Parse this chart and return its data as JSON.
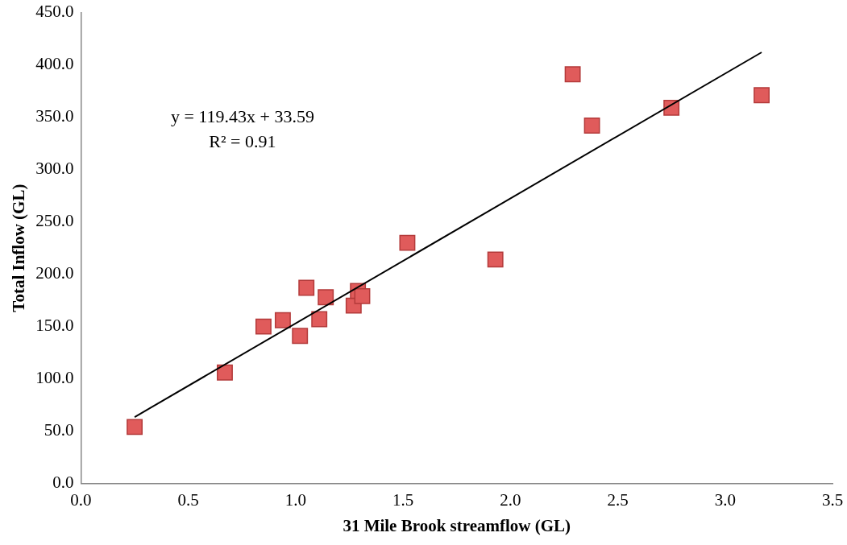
{
  "chart_data": {
    "type": "scatter",
    "xlabel": "31 Mile Brook streamflow (GL)",
    "ylabel": "Total Inflow (GL)",
    "series": [
      {
        "color": "#e05b5b",
        "marker": "square",
        "x": [
          0.25,
          0.67,
          0.85,
          0.94,
          1.02,
          1.05,
          1.11,
          1.14,
          1.27,
          1.29,
          1.31,
          1.52,
          1.93,
          2.29,
          2.38,
          2.75,
          3.17
        ],
        "values": [
          54,
          106,
          150,
          156,
          141,
          187,
          157,
          178,
          170,
          184,
          179,
          230,
          214,
          391,
          342,
          359,
          371
        ]
      },
      {
        "type": "line",
        "color": "#000000",
        "marker": "none",
        "x": [
          0.25,
          3.17
        ],
        "values": [
          63.5,
          412
        ]
      }
    ],
    "annotations": [
      "y = 119.43x + 33.59",
      "R² = 0.91"
    ],
    "xlim": [
      0,
      3.5
    ],
    "ylim": [
      0,
      450
    ],
    "xticks": [
      {
        "value": 0,
        "label": "0.0"
      },
      0.5,
      {
        "value": 1,
        "label": "1.0"
      },
      1.5,
      {
        "value": 2,
        "label": "2.0"
      },
      2.5,
      {
        "value": 3,
        "label": "3.0"
      },
      3.5
    ],
    "yticks": [
      {
        "value": 0,
        "label": "0.0"
      },
      {
        "value": 50,
        "label": "50.0"
      },
      {
        "value": 100,
        "label": "100.0"
      },
      {
        "value": 150,
        "label": "150.0"
      },
      {
        "value": 200,
        "label": "200.0"
      },
      {
        "value": 250,
        "label": "250.0"
      },
      {
        "value": 300,
        "label": "300.0"
      },
      {
        "value": 350,
        "label": "350.0"
      },
      {
        "value": 400,
        "label": "400.0"
      },
      {
        "value": 450,
        "label": "450.0"
      }
    ],
    "grid": false,
    "legend": false
  }
}
